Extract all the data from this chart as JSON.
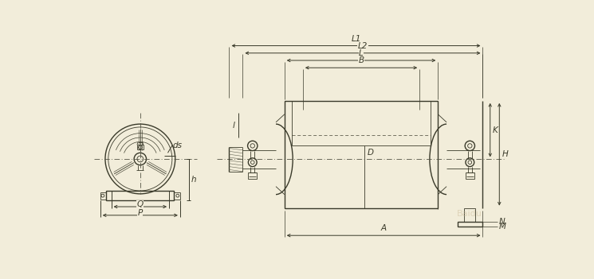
{
  "bg_color": "#f2edda",
  "line_color": "#3a3a2a",
  "dim_color": "#3a3a2a",
  "fig_width": 7.45,
  "fig_height": 3.51,
  "dpi": 100,
  "labels": {
    "L1": "L1",
    "L2": "L2",
    "L": "L",
    "B": "B",
    "A": "A",
    "D": "D",
    "l": "l",
    "ds": "ds",
    "h": "h",
    "P": "P",
    "Q": "Q",
    "K": "K",
    "H": "H",
    "N": "N",
    "M": "M"
  }
}
